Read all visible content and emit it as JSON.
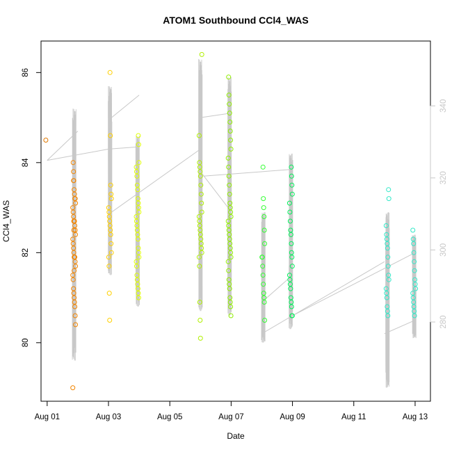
{
  "chart_data": {
    "type": "scatter",
    "title": "ATOM1 Southbound CCl4_WAS",
    "xlabel": "Date",
    "ylabel": "CCl4_WAS",
    "x_ticks": [
      "Aug 01",
      "Aug 03",
      "Aug 05",
      "Aug 07",
      "Aug 09",
      "Aug 11",
      "Aug 13"
    ],
    "x_tick_days": [
      1,
      3,
      5,
      7,
      9,
      11,
      13
    ],
    "xlim_days": [
      0.8,
      13.5
    ],
    "ylim": [
      78.7,
      86.7
    ],
    "y_ticks": [
      80,
      82,
      84,
      86
    ],
    "right_axis": {
      "ticks": [
        280,
        300,
        320,
        340
      ],
      "ylim": [
        258,
        358
      ],
      "color": "#c8c8c8"
    },
    "grid": false,
    "legend": "none",
    "point_color_scale": [
      "#f28500",
      "#ffd000",
      "#dfff00",
      "#90ee00",
      "#33ff33",
      "#00f08a",
      "#33e8c8"
    ],
    "line_color": "#c8c8c8",
    "clusters": [
      {
        "day": 1.0,
        "color": "#e07800",
        "values": [
          84.5
        ]
      },
      {
        "day": 1.88,
        "color": "#f28500",
        "values": [
          83.6,
          83.6,
          83.4,
          83.3,
          83.2,
          83.2,
          83.1,
          83.0,
          82.9,
          82.8,
          82.7,
          82.7,
          82.7,
          82.6,
          82.5,
          82.4,
          82.3,
          82.2,
          82.1,
          82.0,
          81.9,
          81.9,
          81.9,
          81.8,
          81.7,
          81.5,
          81.4,
          81.2,
          81.1,
          81.0,
          80.9,
          80.8,
          80.6,
          80.4,
          79.0,
          84.0,
          83.8,
          82.5,
          81.6
        ]
      },
      {
        "day": 3.05,
        "color": "#ffd000",
        "values": [
          86.0,
          84.6,
          83.5,
          83.3,
          83.2,
          83.0,
          82.9,
          82.8,
          82.7,
          82.6,
          82.5,
          82.4,
          82.2,
          82.0,
          81.9,
          81.7,
          81.1,
          80.5
        ]
      },
      {
        "day": 3.95,
        "color": "#dfff00",
        "values": [
          84.6,
          84.4,
          84.0,
          83.9,
          83.8,
          83.7,
          83.5,
          83.4,
          83.2,
          83.1,
          83.0,
          82.9,
          82.8,
          82.7,
          82.6,
          82.5,
          82.4,
          82.3,
          82.1,
          82.0,
          81.9,
          81.8,
          81.7,
          81.5,
          81.4,
          81.3,
          81.2,
          81.1,
          81.0
        ]
      },
      {
        "day": 6.0,
        "color": "#b0f000",
        "values": [
          86.4,
          84.6,
          84.0,
          83.9,
          83.8,
          83.7,
          83.5,
          83.3,
          83.1,
          82.9,
          82.8,
          82.7,
          82.6,
          82.5,
          82.4,
          82.3,
          82.2,
          82.1,
          82.0,
          81.9,
          81.7,
          80.9,
          80.5,
          80.1
        ]
      },
      {
        "day": 6.95,
        "color": "#90ee00",
        "values": [
          85.9,
          85.5,
          85.3,
          85.1,
          84.9,
          84.7,
          84.5,
          84.3,
          84.1,
          83.9,
          83.7,
          83.5,
          83.3,
          83.1,
          83.0,
          82.9,
          82.8,
          82.7,
          82.6,
          82.5,
          82.4,
          82.3,
          82.2,
          82.1,
          82.0,
          81.9,
          81.8,
          81.6,
          81.4,
          81.3,
          81.2,
          81.0,
          80.9,
          80.8,
          80.6
        ]
      },
      {
        "day": 8.05,
        "color": "#33ff33",
        "values": [
          83.9,
          83.2,
          83.0,
          82.8,
          82.5,
          82.2,
          81.9,
          81.9,
          81.7,
          81.5,
          81.3,
          81.1,
          81.0,
          80.9,
          80.5
        ]
      },
      {
        "day": 8.95,
        "color": "#00f05a",
        "values": [
          83.9,
          83.7,
          83.5,
          83.3,
          83.1,
          82.9,
          82.7,
          82.5,
          82.4,
          82.2,
          82.0,
          81.9,
          81.7,
          81.5,
          81.4,
          81.3,
          81.2,
          81.0,
          80.9,
          80.8,
          80.6,
          80.6
        ]
      },
      {
        "day": 12.1,
        "color": "#33e8c8",
        "values": [
          83.4,
          83.2,
          82.6,
          82.4,
          82.3,
          82.2,
          82.1,
          81.9,
          81.7,
          81.5,
          81.4,
          81.2,
          81.1,
          81.0,
          80.8,
          80.7,
          80.6
        ]
      },
      {
        "day": 12.97,
        "color": "#33e8c8",
        "values": [
          82.5,
          82.3,
          82.2,
          82.0,
          81.8,
          81.6,
          81.4,
          81.3,
          81.2,
          81.1,
          81.0,
          80.9,
          80.8,
          80.7,
          80.6
        ]
      }
    ],
    "trace_segments": [
      {
        "day": 1.88,
        "min": 79.6,
        "max": 85.2
      },
      {
        "day": 3.05,
        "min": 81.5,
        "max": 85.7
      },
      {
        "day": 3.95,
        "min": 80.8,
        "max": 84.6
      },
      {
        "day": 6.0,
        "min": 80.7,
        "max": 86.3
      },
      {
        "day": 6.95,
        "min": 80.6,
        "max": 85.9
      },
      {
        "day": 8.05,
        "min": 80.0,
        "max": 82.9
      },
      {
        "day": 8.95,
        "min": 80.3,
        "max": 84.2
      },
      {
        "day": 12.1,
        "min": 79.0,
        "max": 82.9
      },
      {
        "day": 12.97,
        "min": 80.1,
        "max": 82.4
      }
    ],
    "connectors": [
      {
        "x": [
          1.0,
          2.0
        ],
        "y": [
          84.05,
          84.7
        ]
      },
      {
        "x": [
          1.0,
          3.0
        ],
        "y": [
          84.05,
          84.3
        ]
      },
      {
        "x": [
          3.0,
          4.0
        ],
        "y": [
          84.3,
          84.35
        ]
      },
      {
        "x": [
          3.1,
          4.0
        ],
        "y": [
          85.0,
          85.5
        ]
      },
      {
        "x": [
          3.1,
          6.0
        ],
        "y": [
          82.9,
          84.3
        ]
      },
      {
        "x": [
          6.0,
          7.0
        ],
        "y": [
          85.0,
          85.1
        ]
      },
      {
        "x": [
          6.0,
          6.9
        ],
        "y": [
          83.8,
          83.0
        ]
      },
      {
        "x": [
          6.1,
          9.0
        ],
        "y": [
          83.7,
          83.85
        ]
      },
      {
        "x": [
          8.0,
          9.0
        ],
        "y": [
          80.9,
          81.5
        ]
      },
      {
        "x": [
          8.0,
          12.0
        ],
        "y": [
          80.2,
          81.8
        ]
      },
      {
        "x": [
          9.0,
          13.0
        ],
        "y": [
          80.6,
          82.0
        ]
      },
      {
        "x": [
          12.0,
          13.0
        ],
        "y": [
          80.2,
          80.5
        ]
      }
    ]
  }
}
